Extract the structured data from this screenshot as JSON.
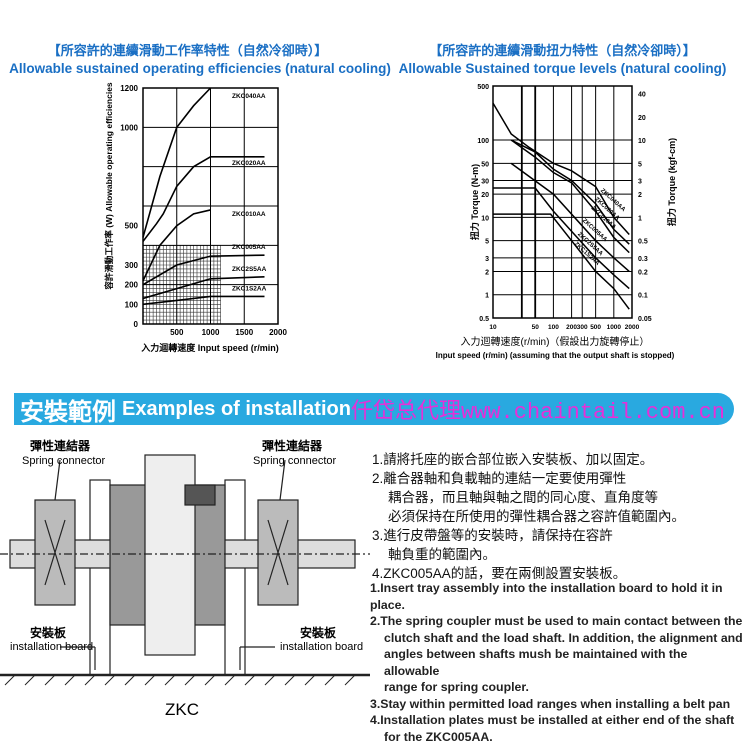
{
  "left_chart_titles": {
    "cn": "【所容許的連續滑動工作率特性（自然冷卻時）】",
    "en": "Allowable sustained operating efficiencies (natural cooling)"
  },
  "right_chart_titles": {
    "cn": "【所容許的連續滑動扭力特性（自然冷卻時）】",
    "en": "Allowable Sustained torque levels (natural cooling)"
  },
  "chart_data": [
    {
      "type": "line",
      "ylabel": "容許滑動工作率 (W) Allowable operating efficiencies",
      "xlabel": "入力迴轉速度 Input speed (r/min)",
      "xlim": [
        0,
        2000
      ],
      "ylim": [
        0,
        1200
      ],
      "grid": true,
      "xticks": [
        500,
        1000,
        1500,
        2000
      ],
      "yticks": [
        0,
        100,
        200,
        300,
        500,
        1000,
        1200
      ],
      "hatched_region": {
        "x": [
          0,
          1150
        ],
        "y": [
          0,
          400
        ]
      },
      "series": [
        {
          "name": "ZKC040AA",
          "points": [
            [
              0,
              440
            ],
            [
              250,
              750
            ],
            [
              500,
              1000
            ],
            [
              750,
              1110
            ],
            [
              1000,
              1200
            ]
          ]
        },
        {
          "name": "ZKC020AA",
          "points": [
            [
              0,
              420
            ],
            [
              200,
              510
            ],
            [
              300,
              560
            ],
            [
              500,
              700
            ],
            [
              750,
              800
            ],
            [
              1000,
              850
            ],
            [
              1800,
              850
            ]
          ]
        },
        {
          "name": "ZKC010AA",
          "points": [
            [
              0,
              220
            ],
            [
              250,
              400
            ],
            [
              500,
              500
            ],
            [
              750,
              560
            ],
            [
              1000,
              580
            ]
          ]
        },
        {
          "name": "ZKC005AA",
          "points": [
            [
              0,
              200
            ],
            [
              500,
              300
            ],
            [
              1000,
              345
            ],
            [
              1800,
              350
            ]
          ]
        },
        {
          "name": "ZKC2S5AA",
          "points": [
            [
              0,
              130
            ],
            [
              500,
              180
            ],
            [
              1000,
              230
            ],
            [
              1800,
              240
            ]
          ]
        },
        {
          "name": "ZKC1S2AA",
          "points": [
            [
              0,
              100
            ],
            [
              500,
              120
            ],
            [
              1000,
              140
            ],
            [
              1800,
              140
            ]
          ]
        }
      ]
    },
    {
      "type": "line",
      "xscale": "log",
      "yscale": "log",
      "ylabel": "扭力 Torque (N-m)",
      "ylabel_right": "扭力 Torque (kgf-cm)",
      "xlabel": "入力迴轉速度(r/min)（假設出力旋轉停止）",
      "xlabel_en": "Input speed (r/min)  (assuming that the output shaft is stopped)",
      "xlim": [
        10,
        2000
      ],
      "ylim": [
        0.5,
        500
      ],
      "grid": true,
      "xticks": [
        10,
        50,
        100,
        200,
        300,
        500,
        1000,
        2000
      ],
      "yticks": [
        0.5,
        1,
        2,
        3,
        5,
        10,
        20,
        30,
        50,
        100,
        500
      ],
      "yticks_right": [
        0.05,
        0.1,
        0.2,
        0.3,
        0.5,
        1,
        2,
        3,
        5,
        10,
        20,
        40
      ],
      "series": [
        {
          "name": "ZKC040AA",
          "points": [
            [
              10,
              300
            ],
            [
              20,
              120
            ],
            [
              40,
              80
            ],
            [
              100,
              50
            ],
            [
              200,
              40
            ],
            [
              500,
              25
            ],
            [
              1000,
              10
            ],
            [
              1800,
              6
            ]
          ]
        },
        {
          "name": "ZKC020AA",
          "points": [
            [
              20,
              100
            ],
            [
              50,
              70
            ],
            [
              100,
              42
            ],
            [
              200,
              30
            ],
            [
              500,
              15
            ],
            [
              1000,
              7
            ],
            [
              1800,
              4.5
            ]
          ]
        },
        {
          "name": "ZKC010AA",
          "points": [
            [
              20,
              100
            ],
            [
              50,
              60
            ],
            [
              100,
              38
            ],
            [
              200,
              28
            ],
            [
              500,
              12
            ],
            [
              1000,
              5.5
            ],
            [
              1800,
              3.5
            ]
          ]
        },
        {
          "name": "ZKC005AA",
          "points": [
            [
              20,
              50
            ],
            [
              100,
              20
            ],
            [
              500,
              5
            ],
            [
              1000,
              3
            ],
            [
              1800,
              2
            ]
          ]
        },
        {
          "name": "ZKC2S5AA",
          "points": [
            [
              10,
              24
            ],
            [
              50,
              24
            ],
            [
              100,
              12
            ],
            [
              500,
              3
            ],
            [
              1000,
              1.8
            ],
            [
              1800,
              1.2
            ]
          ]
        },
        {
          "name": "ZKC1S2AA",
          "points": [
            [
              10,
              11
            ],
            [
              90,
              11
            ],
            [
              200,
              5
            ],
            [
              500,
              2
            ],
            [
              1000,
              1.2
            ],
            [
              1800,
              0.65
            ]
          ]
        }
      ]
    }
  ],
  "banner": {
    "cn": "安裝範例",
    "en": "Examples of installation",
    "watermark": "仟岱总代理www.chaintail.com.cn",
    "bg_color": "#29a9e0",
    "watermark_color": "#e62fd8"
  },
  "diagram": {
    "spring_connector_cn": "彈性連結器",
    "spring_connector_en": "Spring connector",
    "board_cn": "安裝板",
    "board_en": "installation board",
    "model": "ZKC"
  },
  "steps_cn": [
    "1.請將托座的嵌合部位嵌入安裝板、加以固定。",
    "2.離合器軸和負載軸的連結一定要使用彈性",
    "耦合器，而且軸與軸之間的同心度、直角度等",
    "必須保持在所使用的彈性耦合器之容許值範圍內。",
    "3.進行皮帶盤等的安裝時，請保持在容許",
    "軸負重的範圍內。",
    "4.ZKC005AA的話，要在兩側設置安裝板。"
  ],
  "steps_en": [
    "1.Insert tray assembly into the installation board to hold it in place.",
    "2.The spring coupler must be used to main contact between the",
    "clutch shaft and the load shaft.  In addition, the alignment and",
    "angles between shafts mush be maintained with the allowable",
    "range for spring coupler.",
    "3.Stay within permitted load ranges when installing a belt pan",
    "4.Installation plates must be installed at either end of the shaft",
    "for the ZKC005AA."
  ]
}
